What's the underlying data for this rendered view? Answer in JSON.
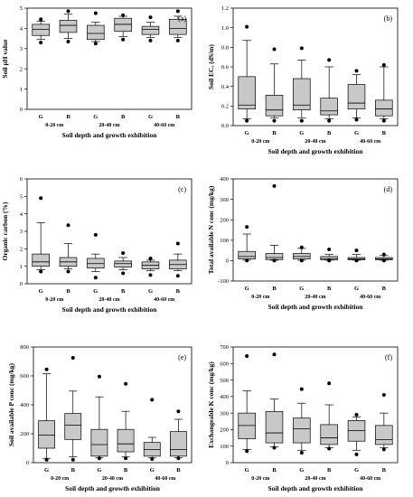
{
  "colors": {
    "box_fill": "#c8c8c8",
    "line": "#000000",
    "background": "#ffffff"
  },
  "chart_data": [
    {
      "type": "box",
      "panel_label": "(a)",
      "ylabel": "Soil pH value",
      "xlabel": "Soil depth and growth exhibition",
      "ylim": [
        0,
        5
      ],
      "yticks": [
        0,
        1,
        2,
        3,
        4,
        5
      ],
      "categories": [
        "G",
        "B",
        "G",
        "B",
        "G",
        "B"
      ],
      "depths": [
        "0-20 cm",
        "20-40 cm",
        "40-60 cm"
      ],
      "boxes": [
        {
          "whisker_low": 3.45,
          "q1": 3.65,
          "median": 3.95,
          "q3": 4.2,
          "whisker_high": 4.35,
          "outliers": [
            3.3,
            4.45
          ]
        },
        {
          "whisker_low": 3.5,
          "q1": 3.8,
          "median": 4.15,
          "q3": 4.4,
          "whisker_high": 4.7,
          "outliers": [
            3.35,
            4.85
          ]
        },
        {
          "whisker_low": 3.35,
          "q1": 3.45,
          "median": 3.75,
          "q3": 4.15,
          "whisker_high": 4.3,
          "outliers": [
            3.25,
            4.75
          ]
        },
        {
          "whisker_low": 3.6,
          "q1": 3.85,
          "median": 4.2,
          "q3": 4.5,
          "whisker_high": 4.6,
          "outliers": [
            3.45,
            4.65
          ]
        },
        {
          "whisker_low": 3.55,
          "q1": 3.7,
          "median": 3.95,
          "q3": 4.1,
          "whisker_high": 4.3,
          "outliers": [
            3.4,
            4.55
          ]
        },
        {
          "whisker_low": 3.55,
          "q1": 3.7,
          "median": 4.0,
          "q3": 4.45,
          "whisker_high": 4.6,
          "outliers": [
            3.4,
            4.85
          ]
        }
      ]
    },
    {
      "type": "box",
      "panel_label": "(b)",
      "ylabel": "Soil ECₑ (dS/m)",
      "xlabel": "Soil depth and growth exhibition",
      "ylim": [
        0,
        1.2
      ],
      "yticks": [
        0.0,
        0.2,
        0.4,
        0.6,
        0.8,
        1.0,
        1.2
      ],
      "categories": [
        "G",
        "B",
        "G",
        "B",
        "G",
        "B"
      ],
      "depths": [
        "0-20 cm",
        "20-40 cm",
        "40-60 cm"
      ],
      "boxes": [
        {
          "whisker_low": 0.07,
          "q1": 0.17,
          "median": 0.21,
          "q3": 0.5,
          "whisker_high": 0.87,
          "outliers": [
            0.05,
            1.01
          ]
        },
        {
          "whisker_low": 0.08,
          "q1": 0.1,
          "median": 0.16,
          "q3": 0.31,
          "whisker_high": 0.63,
          "outliers": [
            0.05,
            0.78
          ]
        },
        {
          "whisker_low": 0.08,
          "q1": 0.16,
          "median": 0.21,
          "q3": 0.48,
          "whisker_high": 0.67,
          "outliers": [
            0.05,
            0.79
          ]
        },
        {
          "whisker_low": 0.07,
          "q1": 0.11,
          "median": 0.15,
          "q3": 0.28,
          "whisker_high": 0.6,
          "outliers": [
            0.05,
            0.67
          ]
        },
        {
          "whisker_low": 0.08,
          "q1": 0.17,
          "median": 0.23,
          "q3": 0.42,
          "whisker_high": 0.52,
          "outliers": [
            0.06,
            0.56
          ]
        },
        {
          "whisker_low": 0.07,
          "q1": 0.1,
          "median": 0.17,
          "q3": 0.26,
          "whisker_high": 0.6,
          "outliers": [
            0.05,
            0.62
          ]
        }
      ]
    },
    {
      "type": "box",
      "panel_label": "(c)",
      "ylabel": "Organic carbon (%)",
      "xlabel": "Soil depth and growth exhibition",
      "ylim": [
        0,
        6
      ],
      "yticks": [
        0,
        1,
        2,
        3,
        4,
        5,
        6
      ],
      "categories": [
        "G",
        "B",
        "G",
        "B",
        "G",
        "B"
      ],
      "depths": [
        "0-20 cm",
        "20-40 cm",
        "40-60 cm"
      ],
      "boxes": [
        {
          "whisker_low": 0.8,
          "q1": 1.0,
          "median": 1.25,
          "q3": 1.7,
          "whisker_high": 3.5,
          "outliers": [
            0.7,
            4.9
          ]
        },
        {
          "whisker_low": 0.85,
          "q1": 1.0,
          "median": 1.25,
          "q3": 1.5,
          "whisker_high": 2.3,
          "outliers": [
            0.7,
            3.35
          ]
        },
        {
          "whisker_low": 0.7,
          "q1": 0.9,
          "median": 1.15,
          "q3": 1.45,
          "whisker_high": 1.7,
          "outliers": [
            0.35,
            2.8
          ]
        },
        {
          "whisker_low": 0.8,
          "q1": 0.95,
          "median": 1.15,
          "q3": 1.3,
          "whisker_high": 1.5,
          "outliers": [
            0.6,
            1.75
          ]
        },
        {
          "whisker_low": 0.75,
          "q1": 0.85,
          "median": 1.05,
          "q3": 1.25,
          "whisker_high": 1.35,
          "outliers": [
            0.5,
            1.45
          ]
        },
        {
          "whisker_low": 0.75,
          "q1": 0.85,
          "median": 1.1,
          "q3": 1.35,
          "whisker_high": 1.7,
          "outliers": [
            0.45,
            2.3
          ]
        }
      ]
    },
    {
      "type": "box",
      "panel_label": "(d)",
      "ylabel": "Total available N conc (mg/kg)",
      "xlabel": "Soil depth and growth exhibition",
      "ylim": [
        -100,
        400
      ],
      "yticks": [
        -100,
        0,
        100,
        200,
        300,
        400
      ],
      "categories": [
        "G",
        "B",
        "G",
        "B",
        "G",
        "B"
      ],
      "depths": [
        "0-20 cm",
        "20-40 cm",
        "40-60 cm"
      ],
      "boxes": [
        {
          "whisker_low": 2,
          "q1": 8,
          "median": 20,
          "q3": 45,
          "whisker_high": 130,
          "outliers": [
            0,
            165
          ]
        },
        {
          "whisker_low": 2,
          "q1": 5,
          "median": 15,
          "q3": 35,
          "whisker_high": 75,
          "outliers": [
            0,
            365
          ]
        },
        {
          "whisker_low": 2,
          "q1": 8,
          "median": 20,
          "q3": 35,
          "whisker_high": 60,
          "outliers": [
            0,
            65
          ]
        },
        {
          "whisker_low": 2,
          "q1": 4,
          "median": 10,
          "q3": 20,
          "whisker_high": 30,
          "outliers": [
            0,
            55
          ]
        },
        {
          "whisker_low": 2,
          "q1": 4,
          "median": 8,
          "q3": 15,
          "whisker_high": 30,
          "outliers": [
            0,
            50
          ]
        },
        {
          "whisker_low": 2,
          "q1": 4,
          "median": 8,
          "q3": 15,
          "whisker_high": 25,
          "outliers": [
            0,
            30
          ]
        }
      ]
    },
    {
      "type": "box",
      "panel_label": "(e)",
      "ylabel": "Soil available P conc (mg/kg)",
      "xlabel": "Soil depth and growth exhibition",
      "ylim": [
        0,
        800
      ],
      "yticks": [
        0,
        200,
        400,
        600,
        800
      ],
      "categories": [
        "G",
        "B",
        "G",
        "B",
        "G",
        "B"
      ],
      "depths": [
        "0-20 cm",
        "20-40 cm",
        "40-60 cm"
      ],
      "boxes": [
        {
          "whisker_low": 30,
          "q1": 100,
          "median": 190,
          "q3": 290,
          "whisker_high": 615,
          "outliers": [
            20,
            645
          ]
        },
        {
          "whisker_low": 40,
          "q1": 160,
          "median": 260,
          "q3": 340,
          "whisker_high": 495,
          "outliers": [
            20,
            725
          ]
        },
        {
          "whisker_low": 35,
          "q1": 45,
          "median": 125,
          "q3": 230,
          "whisker_high": 455,
          "outliers": [
            30,
            595
          ]
        },
        {
          "whisker_low": 40,
          "q1": 75,
          "median": 130,
          "q3": 230,
          "whisker_high": 355,
          "outliers": [
            30,
            545
          ]
        },
        {
          "whisker_low": 35,
          "q1": 45,
          "median": 90,
          "q3": 140,
          "whisker_high": 175,
          "outliers": [
            25,
            435
          ]
        },
        {
          "whisker_low": 35,
          "q1": 45,
          "median": 90,
          "q3": 215,
          "whisker_high": 300,
          "outliers": [
            30,
            355
          ]
        }
      ]
    },
    {
      "type": "box",
      "panel_label": "(f)",
      "ylabel": "Exchangeable K conc (mg/kg)",
      "xlabel": "Soil depth and growth exhibition",
      "ylim": [
        0,
        700
      ],
      "yticks": [
        0,
        100,
        200,
        300,
        400,
        500,
        600,
        700
      ],
      "categories": [
        "G",
        "B",
        "G",
        "B",
        "G",
        "B"
      ],
      "depths": [
        "0-20 cm",
        "20-40 cm",
        "40-60 cm"
      ],
      "boxes": [
        {
          "whisker_low": 80,
          "q1": 145,
          "median": 225,
          "q3": 300,
          "whisker_high": 435,
          "outliers": [
            70,
            645
          ]
        },
        {
          "whisker_low": 95,
          "q1": 120,
          "median": 180,
          "q3": 310,
          "whisker_high": 385,
          "outliers": [
            90,
            655
          ]
        },
        {
          "whisker_low": 75,
          "q1": 120,
          "median": 205,
          "q3": 270,
          "whisker_high": 360,
          "outliers": [
            60,
            445
          ]
        },
        {
          "whisker_low": 90,
          "q1": 110,
          "median": 150,
          "q3": 230,
          "whisker_high": 350,
          "outliers": [
            85,
            480
          ]
        },
        {
          "whisker_low": 75,
          "q1": 130,
          "median": 195,
          "q3": 255,
          "whisker_high": 275,
          "outliers": [
            50,
            290
          ]
        },
        {
          "whisker_low": 90,
          "q1": 110,
          "median": 140,
          "q3": 225,
          "whisker_high": 300,
          "outliers": [
            80,
            410
          ]
        }
      ]
    }
  ]
}
